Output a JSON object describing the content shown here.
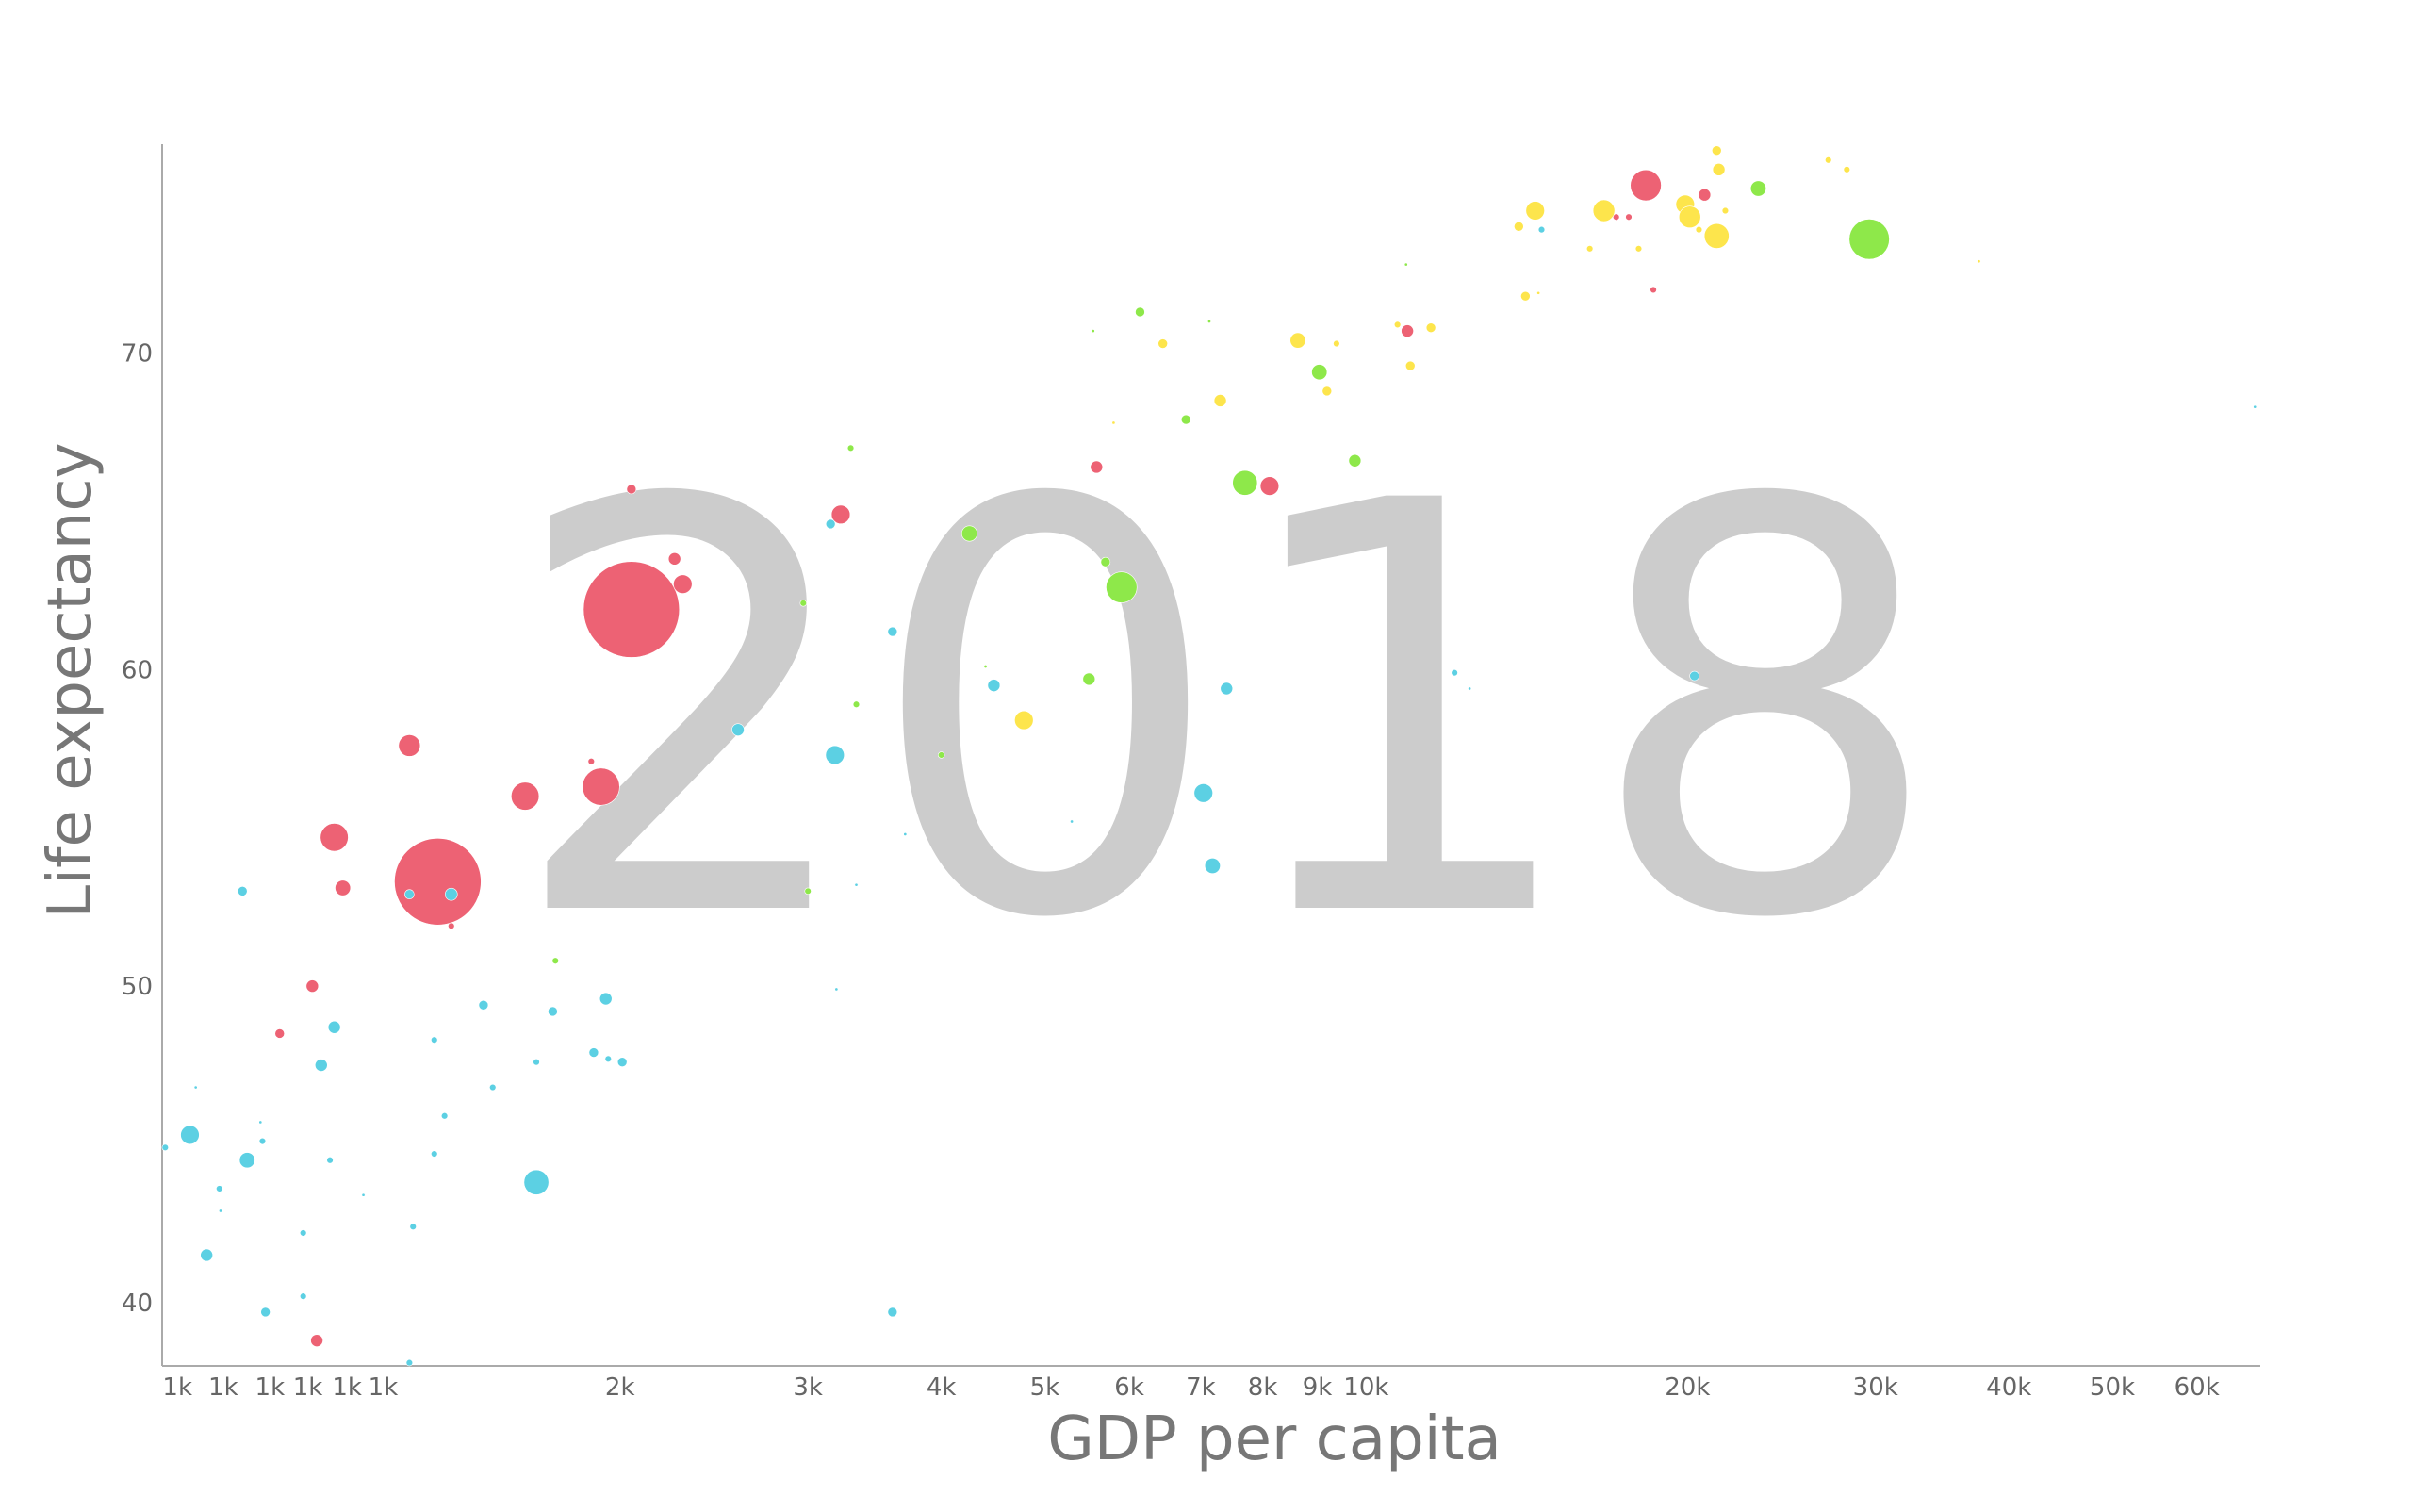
{
  "chart_data": {
    "type": "bubble",
    "annotation": "2018",
    "xlabel": "GDP per capita",
    "ylabel": "Life expectancy",
    "xscale": "log",
    "grid": false,
    "xlim": [
      745,
      68800
    ],
    "ylim": [
      38,
      76.6
    ],
    "xticks": [
      {
        "value": 770,
        "label": "1k"
      },
      {
        "value": 850,
        "label": "1k"
      },
      {
        "value": 940,
        "label": "1k"
      },
      {
        "value": 1020,
        "label": "1k"
      },
      {
        "value": 1110,
        "label": "1k"
      },
      {
        "value": 1200,
        "label": "1k"
      },
      {
        "value": 2000,
        "label": "2k"
      },
      {
        "value": 3000,
        "label": "3k"
      },
      {
        "value": 4000,
        "label": "4k"
      },
      {
        "value": 5000,
        "label": "5k"
      },
      {
        "value": 6000,
        "label": "6k"
      },
      {
        "value": 7000,
        "label": "7k"
      },
      {
        "value": 8000,
        "label": "8k"
      },
      {
        "value": 9000,
        "label": "9k"
      },
      {
        "value": 10000,
        "label": "10k"
      },
      {
        "value": 20000,
        "label": "20k"
      },
      {
        "value": 30000,
        "label": "30k"
      },
      {
        "value": 40000,
        "label": "40k"
      },
      {
        "value": 50000,
        "label": "50k"
      },
      {
        "value": 60000,
        "label": "60k"
      }
    ],
    "yticks": [
      40,
      50,
      60,
      70
    ],
    "series": [
      {
        "color": "#ed6274",
        "x": [
          2050,
          1350,
          18280,
          3220,
          2290,
          2250,
          2050,
          5590,
          8120,
          10930,
          20750,
          17150,
          17620,
          18580,
          1920,
          1880,
          1630,
          1270,
          1080,
          1100,
          1030,
          960,
          1040,
          1390
        ],
        "values": [
          61.9,
          53.3,
          75.3,
          64.9,
          62.7,
          63.5,
          65.7,
          66.4,
          65.8,
          70.7,
          75.0,
          74.3,
          74.3,
          72.0,
          56.3,
          57.1,
          56.0,
          57.6,
          54.7,
          53.1,
          50.0,
          48.5,
          38.8,
          51.9
        ],
        "sizes": [
          1350,
          1100,
          140,
          51,
          51,
          22,
          13,
          22,
          51,
          22,
          22,
          6,
          6,
          6,
          202,
          6,
          114,
          69,
          114,
          35,
          22,
          13,
          22,
          6
        ]
      },
      {
        "color": "#5cd0e3",
        "x": [
          791,
          895,
          820,
          843,
          845,
          886,
          801,
          750,
          925,
          921,
          931,
          1010,
          1010,
          1050,
          1080,
          1070,
          1150,
          1270,
          1390,
          1280,
          1340,
          1340,
          1370,
          1270,
          1490,
          1520,
          1670,
          1730,
          1670,
          1890,
          1940,
          1950,
          2010,
          2580,
          3180,
          3150,
          3600,
          3600,
          4480,
          5300,
          7040,
          7180,
          7400,
          12100,
          20300,
          14600,
          68000,
          3700,
          3330,
          3190,
          12500
        ],
        "values": [
          45.3,
          44.5,
          41.5,
          43.6,
          42.9,
          53.0,
          46.8,
          44.9,
          45.1,
          45.7,
          39.7,
          40.2,
          42.2,
          47.5,
          48.7,
          44.5,
          43.4,
          52.9,
          52.9,
          42.4,
          44.7,
          48.3,
          45.9,
          38.1,
          49.4,
          46.8,
          47.6,
          49.2,
          43.8,
          47.9,
          49.6,
          47.7,
          47.6,
          58.1,
          57.3,
          64.6,
          39.7,
          61.2,
          59.5,
          55.2,
          56.1,
          53.8,
          59.4,
          59.9,
          59.8,
          73.9,
          68.3,
          54.8,
          53.2,
          49.9,
          59.4
        ],
        "sizes": [
          51,
          35,
          22,
          6,
          1.4,
          13,
          1.4,
          6,
          6,
          1.4,
          13,
          6,
          6,
          22,
          22,
          6,
          1.4,
          13,
          22,
          6,
          6,
          6,
          6,
          6,
          13,
          6,
          6,
          13,
          90,
          13,
          22,
          6,
          13,
          22,
          51,
          13,
          13,
          13,
          22,
          1.4,
          51,
          35,
          22,
          6,
          13,
          6,
          1.4,
          1.4,
          1.4,
          1.4,
          1.4
        ]
      },
      {
        "color": "#8ee84a",
        "x": [
          29600,
          23300,
          5900,
          7700,
          4250,
          5500,
          5700,
          9040,
          9760,
          6780,
          6140,
          2970,
          3290,
          4000,
          3330,
          1740,
          3000,
          10900,
          5550,
          7130,
          4400
        ],
        "values": [
          73.6,
          75.2,
          62.6,
          65.9,
          64.3,
          59.7,
          63.4,
          69.4,
          66.6,
          67.9,
          71.3,
          62.1,
          67.0,
          57.3,
          58.9,
          50.8,
          53.0,
          72.8,
          70.7,
          71.0,
          60.1
        ],
        "sizes": [
          237,
          35,
          140,
          90,
          35,
          22,
          13,
          35,
          22,
          13,
          13,
          6,
          6,
          6,
          6,
          6,
          6,
          1.4,
          1.4,
          1.4,
          1.4
        ]
      },
      {
        "color": "#fde54c",
        "x": [
          21300,
          19900,
          20100,
          16700,
          14400,
          21400,
          21300,
          21700,
          20500,
          27100,
          28200,
          13900,
          14100,
          18000,
          16200,
          8630,
          9190,
          7300,
          6450,
          11000,
          11500,
          10700,
          9380,
          4780,
          5800,
          37500,
          14500
        ],
        "values": [
          73.7,
          74.7,
          74.3,
          74.5,
          74.5,
          75.8,
          76.4,
          74.5,
          73.9,
          76.1,
          75.8,
          74.0,
          71.8,
          73.3,
          73.3,
          70.4,
          68.8,
          68.5,
          70.3,
          69.6,
          70.8,
          70.9,
          70.3,
          58.4,
          67.8,
          72.9,
          71.9
        ],
        "sizes": [
          90,
          51,
          69,
          69,
          51,
          22,
          13,
          6,
          6,
          6,
          6,
          13,
          13,
          6,
          6,
          35,
          13,
          22,
          13,
          13,
          13,
          6,
          6,
          51,
          1.4,
          1.4,
          1.4
        ]
      }
    ]
  }
}
